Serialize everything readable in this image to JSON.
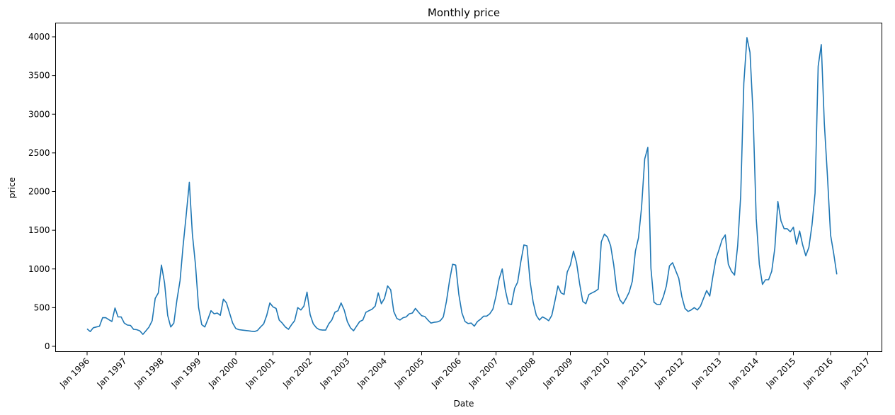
{
  "chart_data": {
    "type": "line",
    "title": "Monthly price",
    "xlabel": "Date",
    "ylabel": "price",
    "ylim": [
      0,
      4000
    ],
    "yticks": [
      0,
      500,
      1000,
      1500,
      2000,
      2500,
      3000,
      3500,
      4000
    ],
    "xticks": [
      {
        "year": 1996,
        "label": "Jan 1996"
      },
      {
        "year": 1997,
        "label": "Jan 1997"
      },
      {
        "year": 1998,
        "label": "Jan 1998"
      },
      {
        "year": 1999,
        "label": "Jan 1999"
      },
      {
        "year": 2000,
        "label": "Jan 2000"
      },
      {
        "year": 2001,
        "label": "Jan 2001"
      },
      {
        "year": 2002,
        "label": "Jan 2002"
      },
      {
        "year": 2003,
        "label": "Jan 2003"
      },
      {
        "year": 2004,
        "label": "Jan 2004"
      },
      {
        "year": 2005,
        "label": "Jan 2005"
      },
      {
        "year": 2006,
        "label": "Jan 2006"
      },
      {
        "year": 2007,
        "label": "Jan 2007"
      },
      {
        "year": 2008,
        "label": "Jan 2008"
      },
      {
        "year": 2009,
        "label": "Jan 2009"
      },
      {
        "year": 2010,
        "label": "Jan 2010"
      },
      {
        "year": 2011,
        "label": "Jan 2011"
      },
      {
        "year": 2012,
        "label": "Jan 2012"
      },
      {
        "year": 2013,
        "label": "Jan 2013"
      },
      {
        "year": 2014,
        "label": "Jan 2014"
      },
      {
        "year": 2015,
        "label": "Jan 2015"
      },
      {
        "year": 2016,
        "label": "Jan 2016"
      },
      {
        "year": 2017,
        "label": "Jan 2017"
      }
    ],
    "grid": false,
    "series": [
      {
        "name": "price",
        "color": "#1f77b4",
        "start": {
          "year": 1996,
          "month": 1
        },
        "frequency": "monthly",
        "values": [
          225,
          190,
          240,
          250,
          260,
          370,
          370,
          345,
          320,
          495,
          380,
          380,
          300,
          275,
          270,
          220,
          215,
          200,
          155,
          200,
          250,
          330,
          620,
          690,
          1050,
          820,
          400,
          250,
          300,
          600,
          850,
          1300,
          1700,
          2120,
          1450,
          1050,
          500,
          280,
          250,
          350,
          460,
          420,
          430,
          400,
          610,
          560,
          430,
          300,
          230,
          215,
          210,
          205,
          200,
          195,
          190,
          205,
          250,
          290,
          400,
          560,
          510,
          490,
          340,
          300,
          250,
          220,
          280,
          330,
          500,
          470,
          520,
          700,
          410,
          290,
          240,
          215,
          210,
          210,
          290,
          340,
          440,
          460,
          560,
          470,
          320,
          240,
          200,
          260,
          320,
          340,
          440,
          460,
          480,
          520,
          690,
          550,
          620,
          780,
          730,
          450,
          360,
          340,
          370,
          380,
          420,
          430,
          490,
          440,
          395,
          385,
          340,
          300,
          310,
          315,
          330,
          380,
          580,
          850,
          1060,
          1050,
          670,
          430,
          320,
          295,
          300,
          260,
          320,
          350,
          390,
          390,
          420,
          480,
          650,
          870,
          1000,
          730,
          550,
          540,
          750,
          830,
          1090,
          1310,
          1300,
          840,
          570,
          400,
          340,
          380,
          360,
          330,
          400,
          580,
          780,
          690,
          670,
          960,
          1050,
          1230,
          1080,
          810,
          580,
          550,
          670,
          690,
          710,
          740,
          1350,
          1450,
          1410,
          1300,
          1050,
          720,
          600,
          550,
          620,
          700,
          840,
          1230,
          1400,
          1800,
          2420,
          2570,
          1010,
          570,
          540,
          540,
          640,
          780,
          1040,
          1080,
          980,
          880,
          640,
          490,
          450,
          470,
          500,
          470,
          520,
          620,
          720,
          650,
          900,
          1130,
          1250,
          1380,
          1440,
          1060,
          970,
          920,
          1300,
          1950,
          3400,
          3990,
          3800,
          3000,
          1650,
          1060,
          800,
          860,
          860,
          970,
          1270,
          1870,
          1620,
          1520,
          1520,
          1480,
          1540,
          1320,
          1490,
          1310,
          1170,
          1280,
          1570,
          1980,
          3620,
          3900,
          2880,
          2200,
          1440,
          1200,
          930
        ]
      }
    ]
  }
}
